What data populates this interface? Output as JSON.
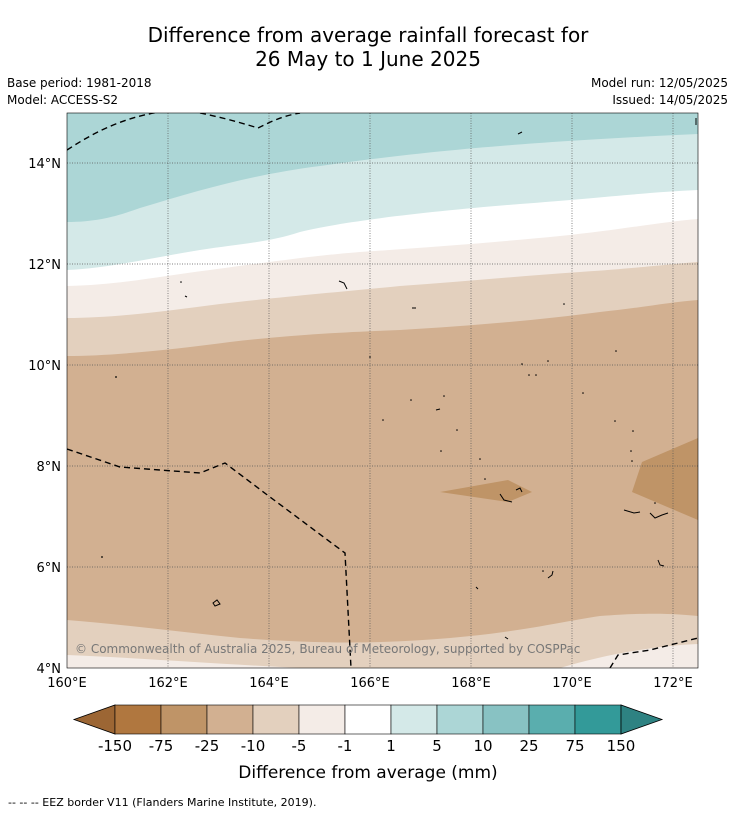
{
  "title": {
    "line1": "Difference from average rainfall forecast for",
    "line2": "26 May to 1 June 2025"
  },
  "meta": {
    "base_period": "Base period: 1981-2018",
    "model": "Model: ACCESS-S2",
    "model_run": "Model run: 12/05/2025",
    "issued": "Issued: 14/05/2025"
  },
  "map": {
    "lon_ticks": [
      "160°E",
      "162°E",
      "164°E",
      "166°E",
      "168°E",
      "170°E",
      "172°E"
    ],
    "lat_ticks": [
      "14°N",
      "12°N",
      "10°N",
      "8°N",
      "6°N",
      "4°N"
    ],
    "copyright": "© Commonwealth of Australia 2025, Bureau of Meteorology, supported by COSPPac",
    "colors": {
      "c_m150": "#9c6634",
      "c_m75": "#b0773f",
      "c_m25": "#bf9467",
      "c_m10": "#d2b091",
      "c_m5": "#e3d0be",
      "c_m1": "#f4ece7",
      "c_0": "#ffffff",
      "c_p1": "#d4e9e8",
      "c_p5": "#acd6d6",
      "c_p10": "#88c2c3",
      "c_p25": "#5aaeae",
      "c_p75": "#339a99",
      "c_p150": "#2e8282"
    }
  },
  "colorbar": {
    "labels": [
      "-150",
      "-75",
      "-25",
      "-10",
      "-5",
      "-1",
      "1",
      "5",
      "10",
      "25",
      "75",
      "150"
    ],
    "title": "Difference from average (mm)"
  },
  "footer": "--  --  -- EEZ border V11 (Flanders Marine Institute, 2019)."
}
